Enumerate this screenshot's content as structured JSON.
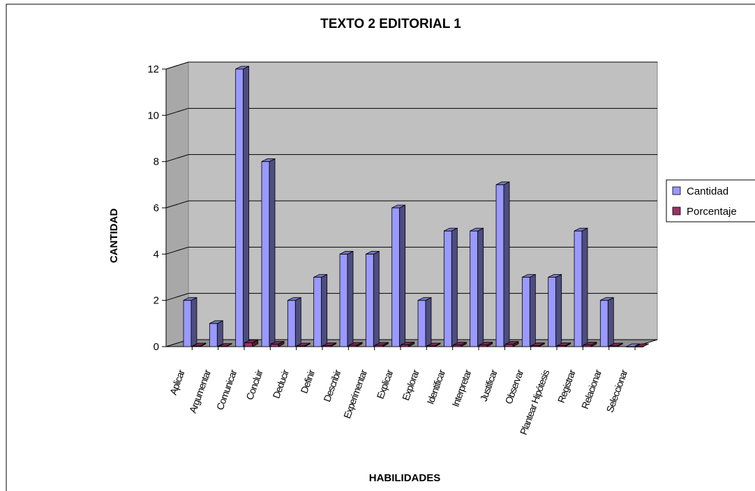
{
  "chart_data": {
    "type": "bar",
    "title": "TEXTO 2 EDITORIAL 1",
    "xlabel": "HABILIDADES",
    "ylabel": "CANTIDAD",
    "ylim": [
      0,
      12
    ],
    "yticks": [
      "0",
      "2",
      "4",
      "6",
      "8",
      "10",
      "12"
    ],
    "grid": true,
    "legend_position": "right",
    "categories": [
      "Aplicar",
      "Argumentar",
      "Comunicar",
      "Concluir",
      "Deducir",
      "Definir",
      "Describir",
      "Experimentar",
      "Explicar",
      "Explorar",
      "Identificar",
      "Interpretar",
      "Justificar",
      "Observar",
      "Plantear Hipótesis",
      "Registrar",
      "Relacionar",
      "Seleccionar"
    ],
    "series": [
      {
        "name": "Cantidad",
        "color": "#9999ff",
        "values": [
          2,
          1,
          12,
          8,
          2,
          3,
          4,
          4,
          6,
          2,
          5,
          5,
          7,
          3,
          3,
          5,
          2,
          0
        ]
      },
      {
        "name": "Porcentaje",
        "color": "#993366",
        "values": [
          0.03,
          0.01,
          0.17,
          0.11,
          0.03,
          0.04,
          0.06,
          0.06,
          0.08,
          0.03,
          0.07,
          0.07,
          0.1,
          0.04,
          0.04,
          0.07,
          0.03,
          0
        ]
      }
    ]
  }
}
